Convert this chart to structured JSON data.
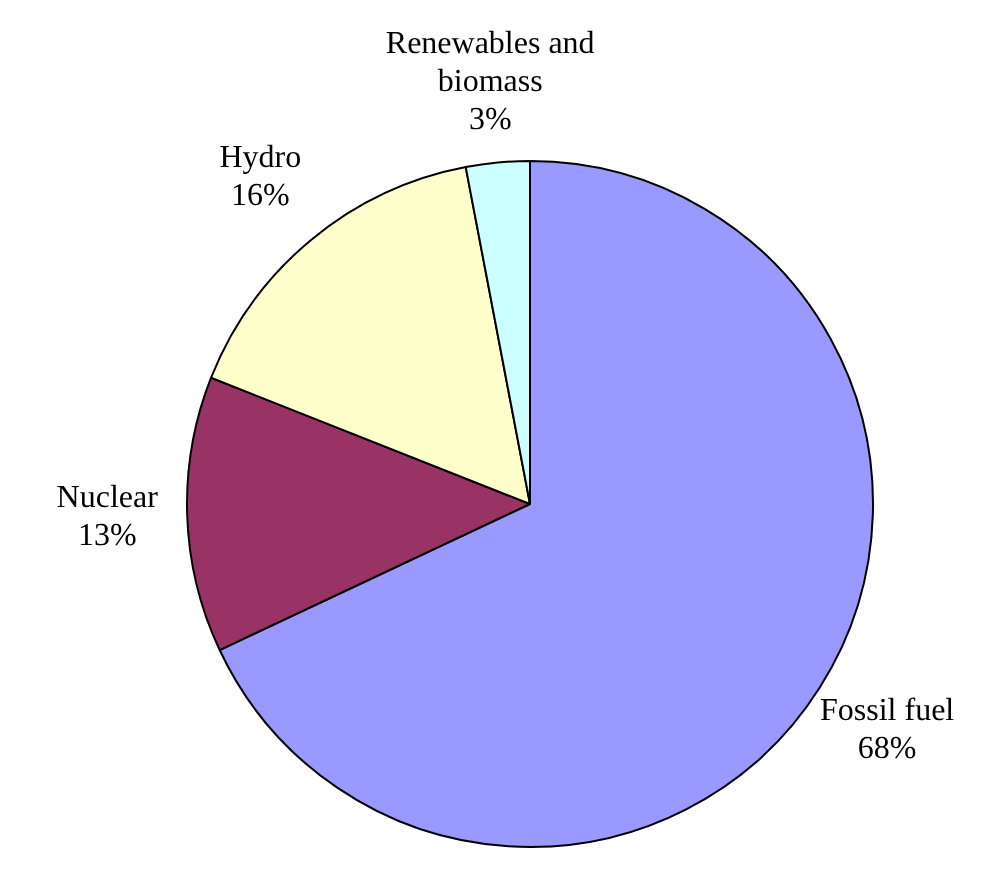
{
  "chart_data": {
    "type": "pie",
    "categories": [
      "Fossil fuel",
      "Nuclear",
      "Hydro",
      "Renewables and biomass"
    ],
    "values": [
      68,
      13,
      16,
      3
    ],
    "value_labels": [
      "68%",
      "13%",
      "16%",
      "3%"
    ],
    "colors": [
      "#9999ff",
      "#993366",
      "#ffffcc",
      "#ccffff"
    ]
  }
}
